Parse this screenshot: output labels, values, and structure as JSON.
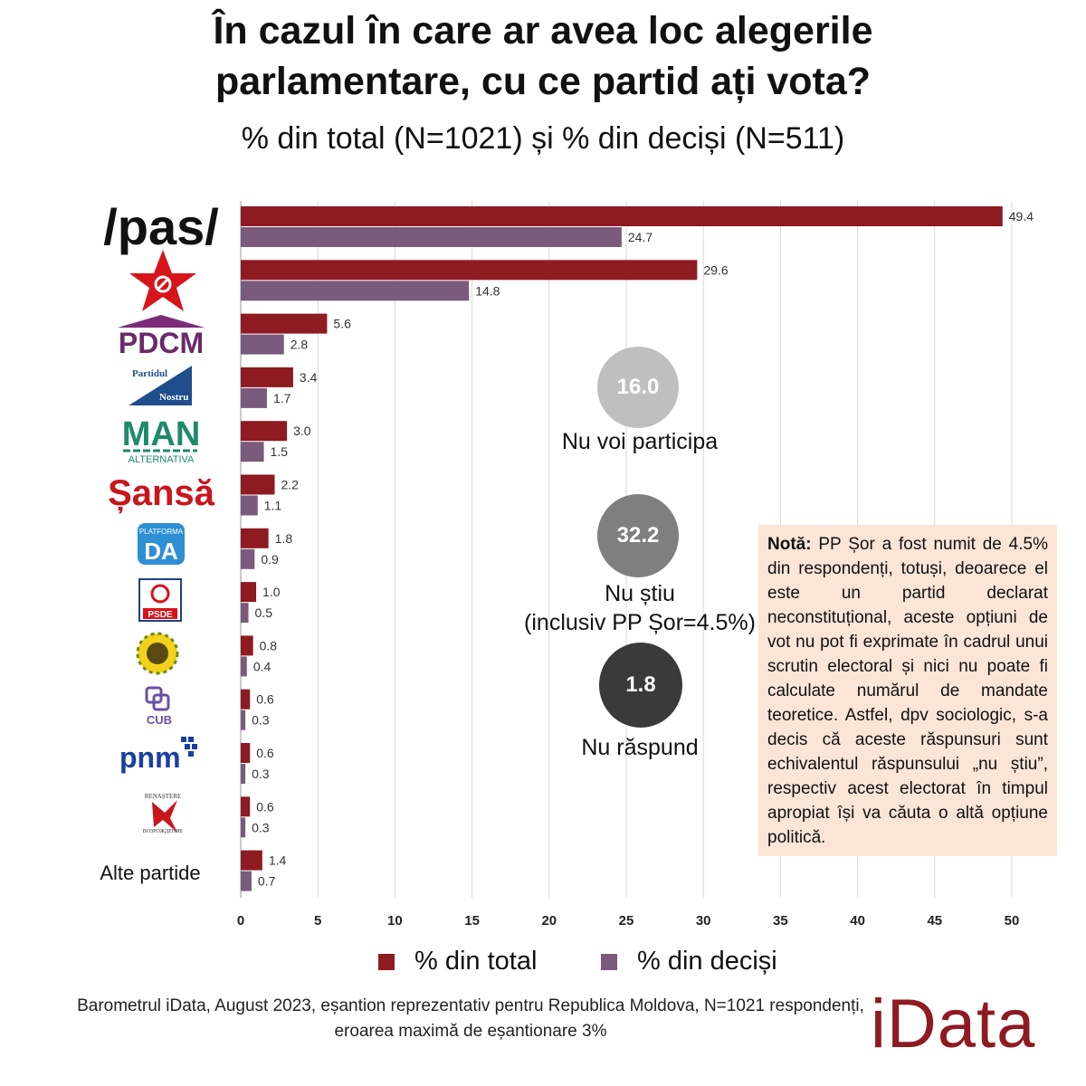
{
  "title_line1": "În cazul în care ar avea loc alegerile",
  "title_line2": "parlamentare, cu ce partid ați vota?",
  "subtitle": "% din total (N=1021) și % din deciși (N=511)",
  "chart_data": {
    "type": "bar",
    "orientation": "horizontal",
    "categories": [
      "pas-logo",
      "communist-star-logo",
      "PDCM",
      "Partidul Nostru",
      "MAN ALTERNATIVA",
      "Șansă",
      "PLATFORMA DA",
      "PSDE",
      "sunflower-logo",
      "CUB",
      "pnm",
      "RENAȘTERE",
      "Alte partide"
    ],
    "series": [
      {
        "name": "% din total",
        "color": "#8e1a22",
        "values": [
          49.4,
          29.6,
          5.6,
          3.4,
          3.0,
          2.2,
          1.8,
          1.0,
          0.8,
          0.6,
          0.6,
          0.6,
          1.4
        ]
      },
      {
        "name": "% din deciși",
        "color": "#7a5a7d",
        "values": [
          24.7,
          14.8,
          2.8,
          1.7,
          1.5,
          1.1,
          0.9,
          0.5,
          0.4,
          0.3,
          0.3,
          0.3,
          0.7
        ]
      }
    ],
    "value_labels_total": [
      "49.4",
      "29.6",
      "5.6",
      "3.4",
      "3.0",
      "2.2",
      "1.8",
      "1.0",
      "0.8",
      "0.6",
      "0.6",
      "0.6",
      "1.4"
    ],
    "value_labels_decisi": [
      "24.7",
      "14.8",
      "2.8",
      "1.7",
      "1.5",
      "1.1",
      "0.9",
      "0.5",
      "0.4",
      "0.3",
      "0.3",
      "0.3",
      "0.7"
    ],
    "xlim": [
      0,
      50
    ],
    "xticks": [
      "0",
      "5",
      "10",
      "15",
      "20",
      "25",
      "30",
      "35",
      "40",
      "45",
      "50"
    ],
    "grid": true,
    "legend": "bottom"
  },
  "logos": {
    "pas": "/pas/",
    "pdcm": "PDCM",
    "partidul": "Partidul",
    "nostru": "Nostru",
    "man": "MAN",
    "alternativa": "ALTERNATIVA",
    "sansa": "Șansă",
    "platforma": "PLATFORMA",
    "da": "DA",
    "psde": "PSDE",
    "cub": "CUB",
    "pnm": "pnm",
    "renastere": "RENAȘTERE",
    "vozrozhdenie": "ВОЗРОЖДЕНИЕ",
    "alte": "Alte partide"
  },
  "circles": [
    {
      "value": "16.0",
      "label": "Nu voi participa",
      "color": "#bfbfbf"
    },
    {
      "value": "32.2",
      "label": "Nu știu",
      "label2": "(inclusiv PP Șor=4.5%)",
      "color": "#7f7f7f"
    },
    {
      "value": "1.8",
      "label": "Nu răspund",
      "color": "#3a3a3a"
    }
  ],
  "note": {
    "bold": "Notă:",
    "text": " PP Șor a fost numit de 4.5% din respondenți, totuși, deoarece el este un partid declarat neconstituțional, aceste opțiuni de vot nu pot fi exprimate în cadrul unui scrutin electoral și nici nu poate fi calculate numărul de mandate teoretice. Astfel, dpv sociologic, s-a decis că aceste răspunsuri sunt echivalentul răspunsului „nu știu”, respectiv acest electorat în timpul apropiat își va căuta o altă opțiune politică."
  },
  "legend": {
    "total": "% din total",
    "decisi": "% din deciși"
  },
  "source": "Barometrul iData, August 2023, eșantion reprezentativ pentru Republica Moldova, N=1021 respondenți, eroarea maximă de eșantionare 3%",
  "brand": "iData"
}
